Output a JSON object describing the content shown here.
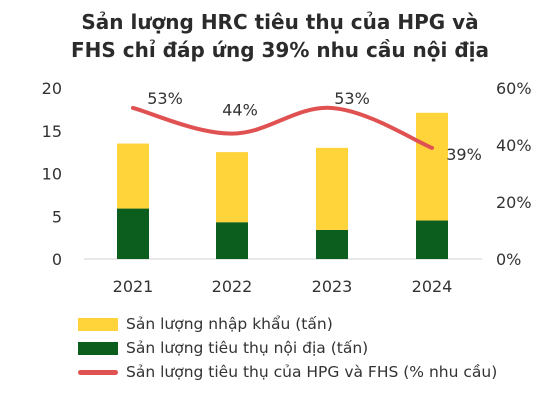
{
  "chart_data": {
    "type": "bar",
    "title_line1": "Sản lượng HRC tiêu thụ của HPG và",
    "title_line2": "FHS chỉ đáp ứng 39% nhu cầu nội địa",
    "categories": [
      "2021",
      "2022",
      "2023",
      "2024"
    ],
    "series": [
      {
        "name": "Sản lượng nhập khẩu (tấn)",
        "kind": "stacked-bar",
        "color": "#FFD43B",
        "values": [
          7.6,
          8.2,
          9.6,
          12.6
        ]
      },
      {
        "name": "Sản lượng tiêu thụ nội địa (tấn)",
        "kind": "stacked-bar",
        "color": "#0B5E1E",
        "values": [
          5.9,
          4.3,
          3.4,
          4.5
        ]
      },
      {
        "name": "Sản lượng tiêu thụ của HPG và FHS (% nhu cầu)",
        "kind": "line",
        "axis": "right",
        "color": "#E05252",
        "values": [
          53,
          44,
          53,
          39
        ],
        "labels": [
          "53%",
          "44%",
          "53%",
          "39%"
        ]
      }
    ],
    "ylim_left": [
      0,
      20
    ],
    "yticks_left": [
      "0",
      "5",
      "10",
      "15",
      "20"
    ],
    "ylim_right": [
      0,
      60
    ],
    "yticks_right": [
      "0%",
      "20%",
      "40%",
      "60%"
    ],
    "grid": false,
    "legend_position": "bottom-left"
  }
}
